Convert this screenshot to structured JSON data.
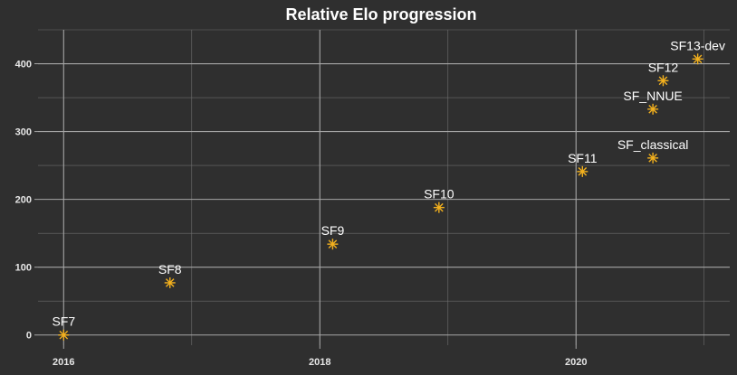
{
  "chart_data": {
    "type": "scatter",
    "title": "Relative Elo progression",
    "xlabel": "",
    "ylabel": "",
    "xlim": [
      2015.8,
      2021.2
    ],
    "ylim": [
      -15,
      450
    ],
    "x_ticks": [
      2016,
      2018,
      2020
    ],
    "y_ticks": [
      0,
      100,
      200,
      300,
      400
    ],
    "grid": true,
    "marker_color": "#f2b01e",
    "background_color": "#2f2f2f",
    "points": [
      {
        "label": "SF7",
        "x": 2016.0,
        "y": 0
      },
      {
        "label": "SF8",
        "x": 2016.83,
        "y": 77
      },
      {
        "label": "SF9",
        "x": 2018.1,
        "y": 134
      },
      {
        "label": "SF10",
        "x": 2018.93,
        "y": 188
      },
      {
        "label": "SF11",
        "x": 2020.05,
        "y": 241
      },
      {
        "label": "SF_classical",
        "x": 2020.6,
        "y": 261
      },
      {
        "label": "SF_NNUE",
        "x": 2020.6,
        "y": 333
      },
      {
        "label": "SF12",
        "x": 2020.68,
        "y": 375
      },
      {
        "label": "SF13-dev",
        "x": 2020.95,
        "y": 407
      }
    ]
  }
}
